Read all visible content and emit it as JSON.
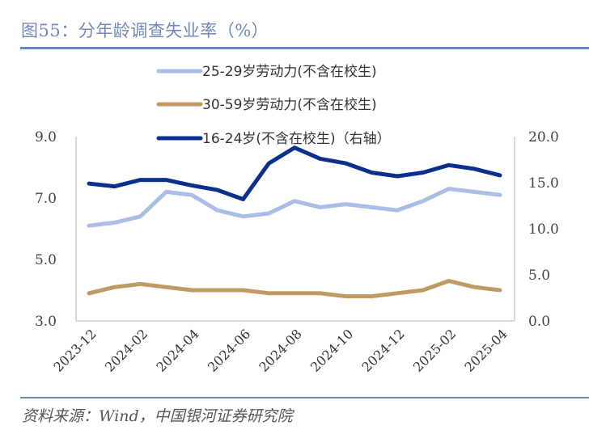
{
  "header": {
    "title": "图55：分年龄调查失业率（%）"
  },
  "footer": {
    "source": "资料来源：Wind，中国银河证券研究院"
  },
  "chart_data": {
    "type": "line",
    "title": "图55：分年龄调查失业率（%）",
    "x": [
      "2023-12",
      "2024-01",
      "2024-02",
      "2024-03",
      "2024-04",
      "2024-05",
      "2024-06",
      "2024-07",
      "2024-08",
      "2024-09",
      "2024-10",
      "2024-11",
      "2024-12",
      "2025-01",
      "2025-02",
      "2025-03",
      "2025-04"
    ],
    "x_tick_labels": [
      "2023-12",
      "2024-02",
      "2024-04",
      "2024-06",
      "2024-08",
      "2024-10",
      "2024-12",
      "2025-02",
      "2025-04"
    ],
    "left_axis": {
      "ylim": [
        3.0,
        9.0
      ],
      "ticks": [
        "3.0",
        "5.0",
        "7.0",
        "9.0"
      ]
    },
    "right_axis": {
      "ylim": [
        0.0,
        20.0
      ],
      "ticks": [
        "0.0",
        "5.0",
        "10.0",
        "15.0",
        "20.0"
      ]
    },
    "grid": false,
    "legend_position": "top-center",
    "series": [
      {
        "name": "25-29岁劳动力(不含在校生)",
        "axis": "left",
        "color": "#a9bde6",
        "values": [
          6.1,
          6.2,
          6.4,
          7.2,
          7.1,
          6.6,
          6.4,
          6.5,
          6.9,
          6.7,
          6.8,
          6.7,
          6.6,
          6.9,
          7.3,
          7.2,
          7.1
        ]
      },
      {
        "name": "30-59岁劳动力(不含在校生)",
        "axis": "left",
        "color": "#bf9a64",
        "values": [
          3.9,
          4.1,
          4.2,
          4.1,
          4.0,
          4.0,
          4.0,
          3.9,
          3.9,
          3.9,
          3.8,
          3.8,
          3.9,
          4.0,
          4.3,
          4.1,
          4.0
        ]
      },
      {
        "name": "16-24岁(不含在校生)（右轴）",
        "axis": "right",
        "color": "#0b2f8c",
        "values": [
          14.9,
          14.6,
          15.3,
          15.3,
          14.7,
          14.2,
          13.2,
          17.1,
          18.8,
          17.6,
          17.1,
          16.1,
          15.7,
          16.1,
          16.9,
          16.5,
          15.8
        ]
      }
    ]
  }
}
